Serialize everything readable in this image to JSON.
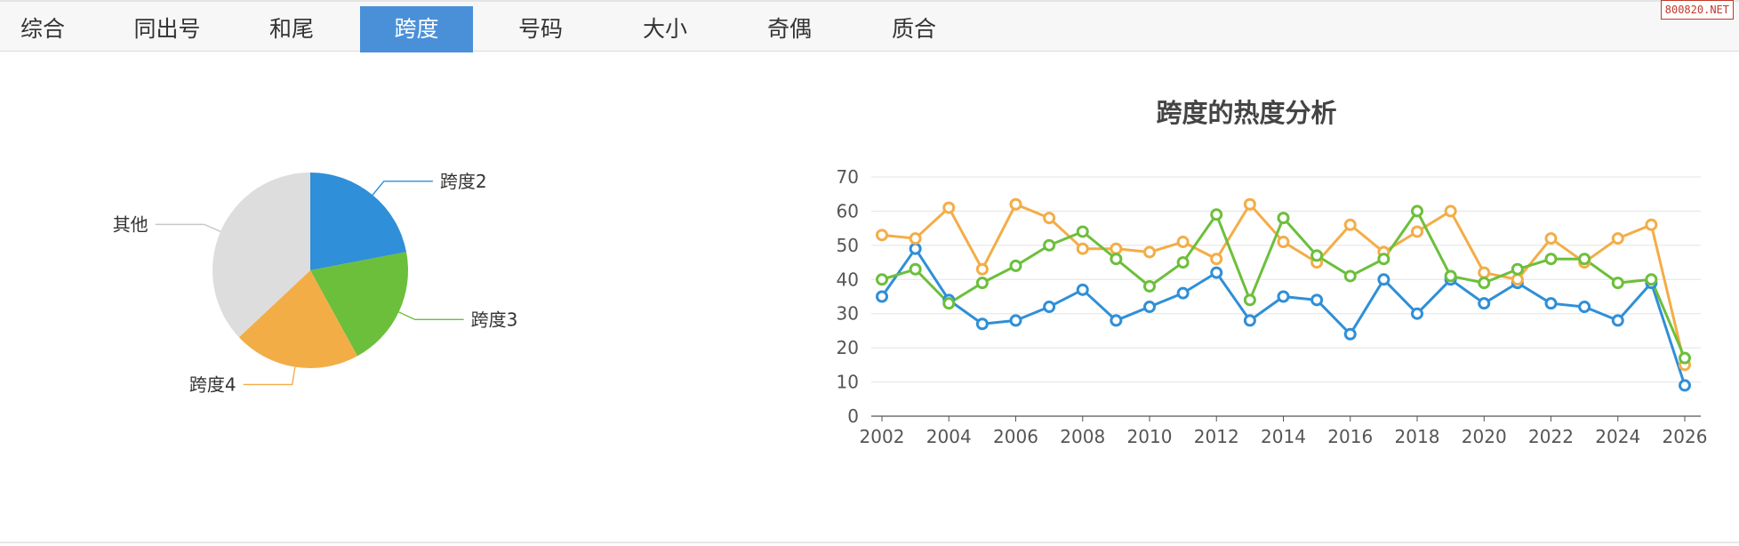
{
  "tabs": [
    {
      "label": "综合",
      "active": false
    },
    {
      "label": "同出号",
      "active": false
    },
    {
      "label": "和尾",
      "active": false
    },
    {
      "label": "跨度",
      "active": true
    },
    {
      "label": "号码",
      "active": false
    },
    {
      "label": "大小",
      "active": false
    },
    {
      "label": "奇偶",
      "active": false
    },
    {
      "label": "质合",
      "active": false
    }
  ],
  "watermark": "800820.NET",
  "colors": {
    "blue": "#2f8fd8",
    "green": "#6cbf3b",
    "orange": "#f3ad47",
    "gray": "#dddddd",
    "active_tab": "#4a90d9"
  },
  "chart_data": [
    {
      "type": "pie",
      "title": "",
      "slices": [
        {
          "label": "跨度2",
          "value": 22,
          "color": "#2f8fd8"
        },
        {
          "label": "跨度3",
          "value": 20,
          "color": "#6cbf3b"
        },
        {
          "label": "跨度4",
          "value": 21,
          "color": "#f3ad47"
        },
        {
          "label": "其他",
          "value": 37,
          "color": "#dddddd"
        }
      ]
    },
    {
      "type": "line",
      "title": "跨度的热度分析",
      "xlabel": "",
      "ylabel": "",
      "ylim": [
        0,
        70
      ],
      "yticks": [
        0,
        10,
        20,
        30,
        40,
        50,
        60,
        70
      ],
      "xticks": [
        2002,
        2004,
        2006,
        2008,
        2010,
        2012,
        2014,
        2016,
        2018,
        2020,
        2022,
        2024,
        2026
      ],
      "x": [
        2002,
        2003,
        2004,
        2005,
        2006,
        2007,
        2008,
        2009,
        2010,
        2011,
        2012,
        2013,
        2014,
        2015,
        2016,
        2017,
        2018,
        2019,
        2020,
        2021,
        2022,
        2023,
        2024,
        2025,
        2026
      ],
      "grid": true,
      "series": [
        {
          "color": "#2f8fd8",
          "values": [
            35,
            49,
            34,
            27,
            28,
            32,
            37,
            28,
            32,
            36,
            42,
            28,
            35,
            34,
            24,
            40,
            30,
            40,
            33,
            39,
            33,
            32,
            28,
            39,
            9
          ]
        },
        {
          "color": "#f3ad47",
          "values": [
            53,
            52,
            61,
            43,
            62,
            58,
            49,
            49,
            48,
            51,
            46,
            62,
            51,
            45,
            56,
            48,
            54,
            60,
            42,
            40,
            52,
            45,
            52,
            56,
            15
          ]
        },
        {
          "color": "#6cbf3b",
          "values": [
            40,
            43,
            33,
            39,
            44,
            50,
            54,
            46,
            38,
            45,
            59,
            34,
            58,
            47,
            41,
            46,
            60,
            41,
            39,
            43,
            46,
            46,
            39,
            40,
            17
          ]
        }
      ]
    }
  ]
}
